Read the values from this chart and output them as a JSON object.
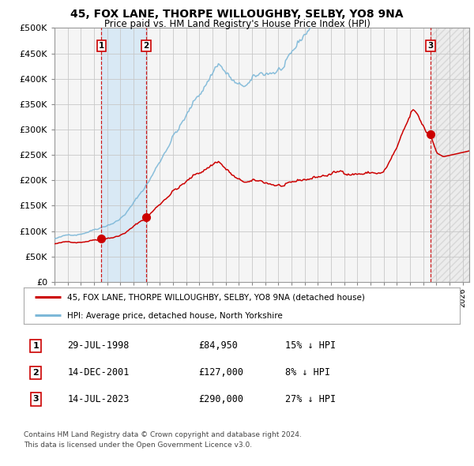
{
  "title": "45, FOX LANE, THORPE WILLOUGHBY, SELBY, YO8 9NA",
  "subtitle": "Price paid vs. HM Land Registry's House Price Index (HPI)",
  "hpi_label": "HPI: Average price, detached house, North Yorkshire",
  "property_label": "45, FOX LANE, THORPE WILLOUGHBY, SELBY, YO8 9NA (detached house)",
  "hpi_color": "#7db8d8",
  "property_color": "#cc0000",
  "background_color": "#ffffff",
  "grid_color": "#c8c8c8",
  "ylim": [
    0,
    500000
  ],
  "xlim_start": 1995.0,
  "xlim_end": 2026.5,
  "sales": [
    {
      "label": "1",
      "date": 1998.57,
      "price": 84950,
      "hpi_pct": 15,
      "date_str": "29-JUL-1998"
    },
    {
      "label": "2",
      "date": 2001.95,
      "price": 127000,
      "hpi_pct": 8,
      "date_str": "14-DEC-2001"
    },
    {
      "label": "3",
      "date": 2023.54,
      "price": 290000,
      "hpi_pct": 27,
      "date_str": "14-JUL-2023"
    }
  ],
  "footer1": "Contains HM Land Registry data © Crown copyright and database right 2024.",
  "footer2": "This data is licensed under the Open Government Licence v3.0.",
  "ytick_labels": [
    "£0",
    "£50K",
    "£100K",
    "£150K",
    "£200K",
    "£250K",
    "£300K",
    "£350K",
    "£400K",
    "£450K",
    "£500K"
  ],
  "ytick_values": [
    0,
    50000,
    100000,
    150000,
    200000,
    250000,
    300000,
    350000,
    400000,
    450000,
    500000
  ],
  "xtick_years": [
    1995,
    1996,
    1997,
    1998,
    1999,
    2000,
    2001,
    2002,
    2003,
    2004,
    2005,
    2006,
    2007,
    2008,
    2009,
    2010,
    2011,
    2012,
    2013,
    2014,
    2015,
    2016,
    2017,
    2018,
    2019,
    2020,
    2021,
    2022,
    2023,
    2024,
    2025,
    2026
  ]
}
